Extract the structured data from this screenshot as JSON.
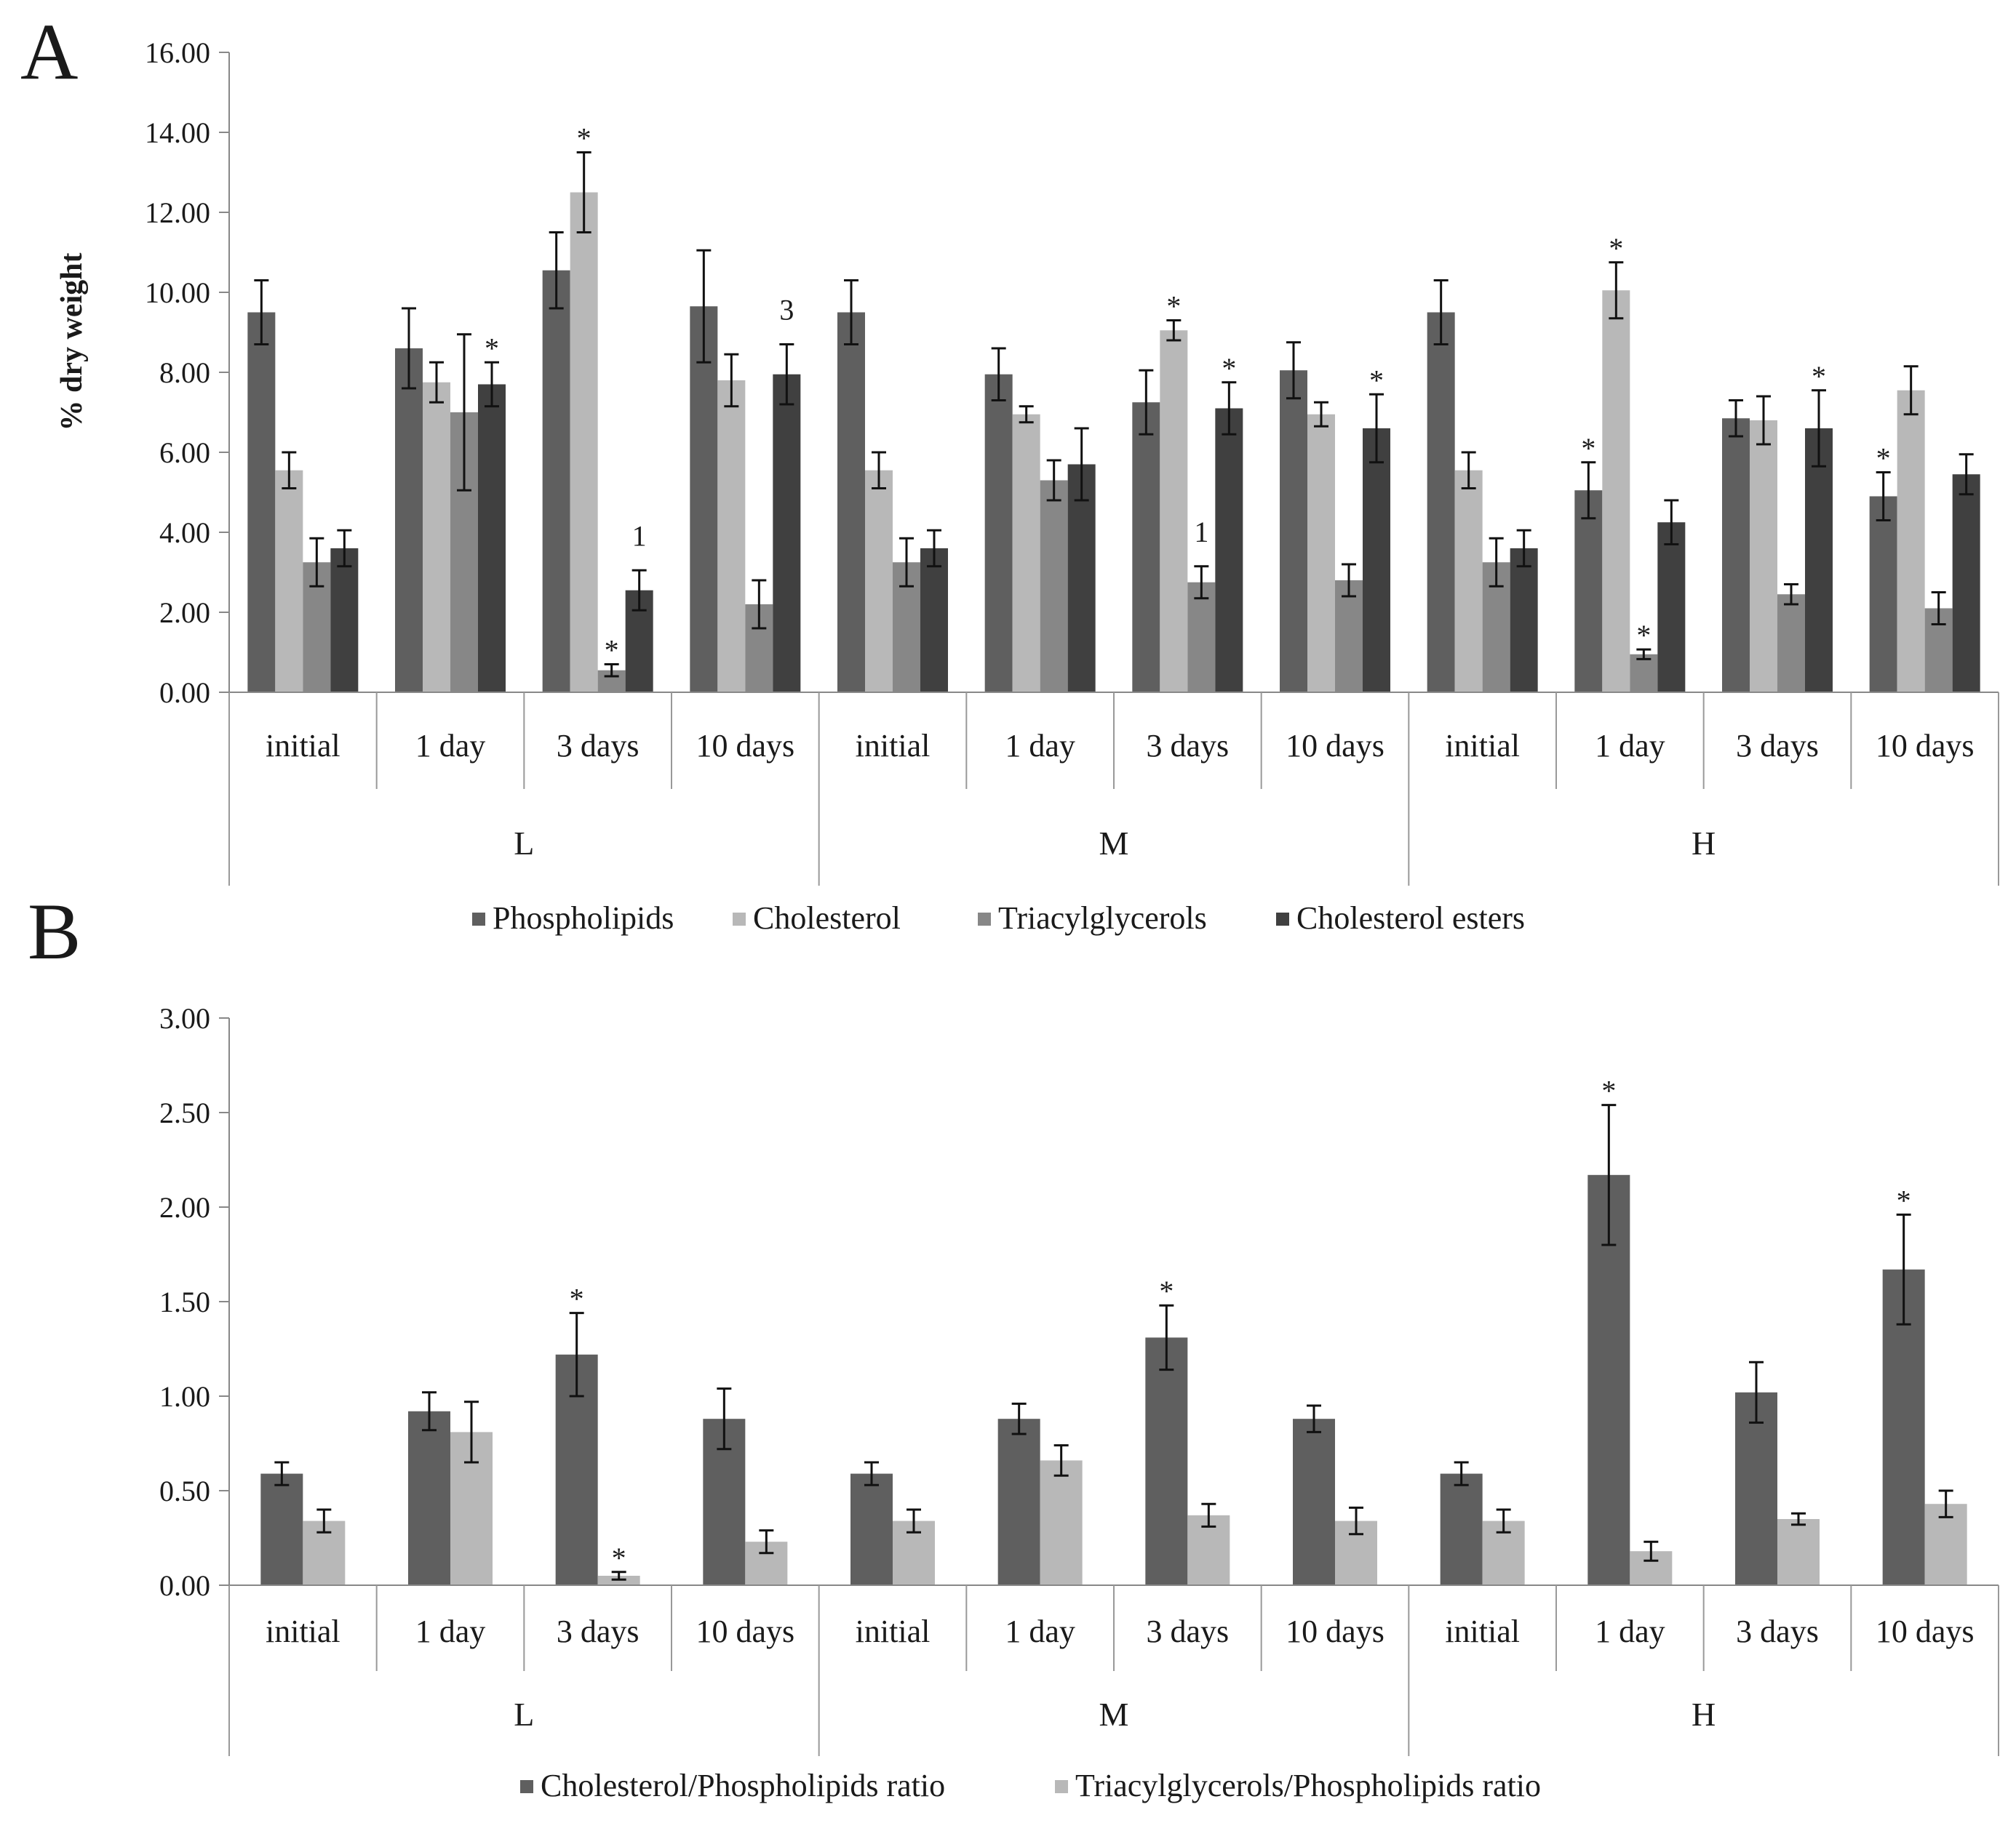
{
  "figure": {
    "panels": [
      {
        "letter": "A",
        "chart_data": {
          "type": "bar",
          "title": "",
          "xlabel": "",
          "ylabel": "% dry weight",
          "ylim": [
            0,
            16
          ],
          "yticks": [
            "0.00",
            "2.00",
            "4.00",
            "6.00",
            "8.00",
            "10.00",
            "12.00",
            "14.00",
            "16.00"
          ],
          "groups": [
            "L",
            "M",
            "H"
          ],
          "categories": [
            "initial",
            "1 day",
            "3 days",
            "10 days",
            "initial",
            "1 day",
            "3 days",
            "10 days",
            "initial",
            "1 day",
            "3 days",
            "10 days"
          ],
          "series": [
            {
              "name": "Phospholipids",
              "color": "#5f5f5f",
              "values": [
                9.5,
                8.6,
                10.55,
                9.65,
                9.5,
                7.95,
                7.25,
                8.05,
                9.5,
                5.05,
                6.85,
                4.9
              ],
              "errors": [
                0.8,
                1.0,
                0.95,
                1.4,
                0.8,
                0.65,
                0.8,
                0.7,
                0.8,
                0.7,
                0.45,
                0.6
              ],
              "annotations": [
                "",
                "",
                "",
                "",
                "",
                "",
                "",
                "",
                "",
                "*",
                "",
                "*"
              ]
            },
            {
              "name": "Cholesterol",
              "color": "#b8b8b8",
              "values": [
                5.55,
                7.75,
                12.5,
                7.8,
                5.55,
                6.95,
                9.05,
                6.95,
                5.55,
                10.05,
                6.8,
                7.55
              ],
              "errors": [
                0.45,
                0.5,
                1.0,
                0.65,
                0.45,
                0.2,
                0.25,
                0.3,
                0.45,
                0.7,
                0.6,
                0.6
              ],
              "annotations": [
                "",
                "",
                "*",
                "",
                "",
                "",
                "*",
                "",
                "",
                "*",
                "",
                ""
              ]
            },
            {
              "name": "Triacylglycerols",
              "color": "#878787",
              "values": [
                3.25,
                7.0,
                0.55,
                2.2,
                3.25,
                5.3,
                2.75,
                2.8,
                3.25,
                0.95,
                2.45,
                2.1
              ],
              "errors": [
                0.6,
                1.95,
                0.15,
                0.6,
                0.6,
                0.5,
                0.4,
                0.4,
                0.6,
                0.12,
                0.25,
                0.4
              ],
              "annotations": [
                "",
                "",
                "*",
                "",
                "",
                "",
                "1",
                "",
                "",
                "*",
                "",
                ""
              ]
            },
            {
              "name": "Cholesterol esters",
              "color": "#404040",
              "values": [
                3.6,
                7.7,
                2.55,
                7.95,
                3.6,
                5.7,
                7.1,
                6.6,
                3.6,
                4.25,
                6.6,
                5.45
              ],
              "errors": [
                0.45,
                0.55,
                0.5,
                0.75,
                0.45,
                0.9,
                0.65,
                0.85,
                0.45,
                0.55,
                0.95,
                0.5
              ],
              "annotations": [
                "",
                "*",
                "1",
                "3",
                "",
                "",
                "*",
                "*",
                "",
                "",
                "*",
                ""
              ]
            }
          ]
        }
      },
      {
        "letter": "B",
        "chart_data": {
          "type": "bar",
          "title": "",
          "xlabel": "",
          "ylabel": "",
          "ylim": [
            0,
            3
          ],
          "yticks": [
            "0.00",
            "0.50",
            "1.00",
            "1.50",
            "2.00",
            "2.50",
            "3.00"
          ],
          "groups": [
            "L",
            "M",
            "H"
          ],
          "categories": [
            "initial",
            "1 day",
            "3 days",
            "10 days",
            "initial",
            "1 day",
            "3 days",
            "10 days",
            "initial",
            "1 day",
            "3 days",
            "10 days"
          ],
          "series": [
            {
              "name": "Cholesterol/Phospholipids ratio",
              "color": "#5f5f5f",
              "values": [
                0.59,
                0.92,
                1.22,
                0.88,
                0.59,
                0.88,
                1.31,
                0.88,
                0.59,
                2.17,
                1.02,
                1.67
              ],
              "errors": [
                0.06,
                0.1,
                0.22,
                0.16,
                0.06,
                0.08,
                0.17,
                0.07,
                0.06,
                0.37,
                0.16,
                0.29
              ],
              "annotations": [
                "",
                "",
                "*",
                "",
                "",
                "",
                "*",
                "",
                "",
                "*",
                "",
                "*"
              ]
            },
            {
              "name": "Triacylglycerols/Phospholipids ratio",
              "color": "#b8b8b8",
              "values": [
                0.34,
                0.81,
                0.05,
                0.23,
                0.34,
                0.66,
                0.37,
                0.34,
                0.34,
                0.18,
                0.35,
                0.43
              ],
              "errors": [
                0.06,
                0.16,
                0.02,
                0.06,
                0.06,
                0.08,
                0.06,
                0.07,
                0.06,
                0.05,
                0.03,
                0.07
              ],
              "annotations": [
                "",
                "",
                "*",
                "",
                "",
                "",
                "",
                "",
                "",
                "",
                "",
                ""
              ]
            }
          ]
        }
      }
    ]
  }
}
